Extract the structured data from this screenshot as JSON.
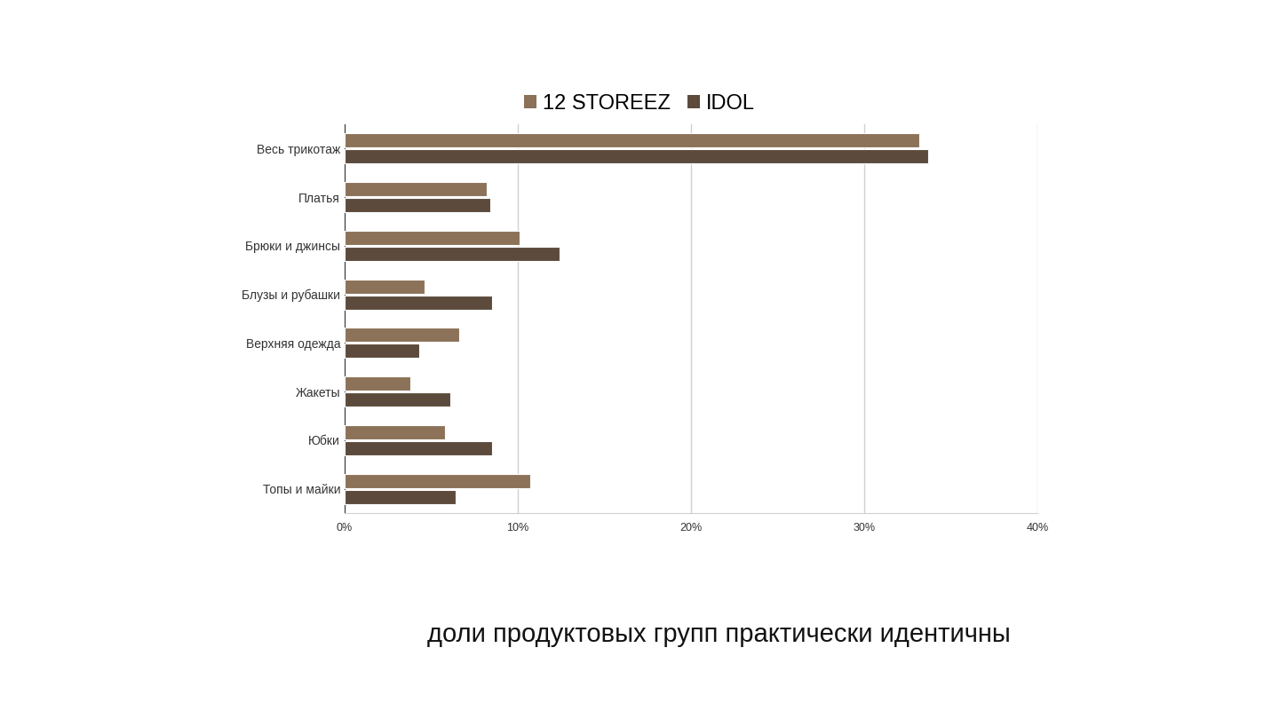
{
  "chart_data": {
    "type": "bar",
    "orientation": "horizontal",
    "categories": [
      "Весь трикотаж",
      "Платья",
      "Брюки и джинсы",
      "Блузы и рубашки",
      "Верхняя одежда",
      "Жакеты",
      "Юбки",
      "Топы и майки"
    ],
    "series": [
      {
        "name": "12 STOREEZ",
        "color": "#8b7258",
        "values": [
          33.2,
          8.2,
          10.1,
          4.6,
          6.6,
          3.8,
          5.8,
          10.7
        ]
      },
      {
        "name": "IDOL",
        "color": "#5c4b3c",
        "values": [
          33.7,
          8.4,
          12.4,
          8.5,
          4.3,
          6.1,
          8.5,
          6.4
        ]
      }
    ],
    "xlim": [
      0,
      40
    ],
    "xticks": [
      {
        "value": 0,
        "label": "0%"
      },
      {
        "value": 10,
        "label": "10%"
      },
      {
        "value": 20,
        "label": "20%"
      },
      {
        "value": 30,
        "label": "30%"
      },
      {
        "value": 40,
        "label": "40%"
      }
    ],
    "grid": true,
    "legend": "upper center",
    "annotations": [
      "доли продуктовых групп практически идентичны"
    ]
  }
}
